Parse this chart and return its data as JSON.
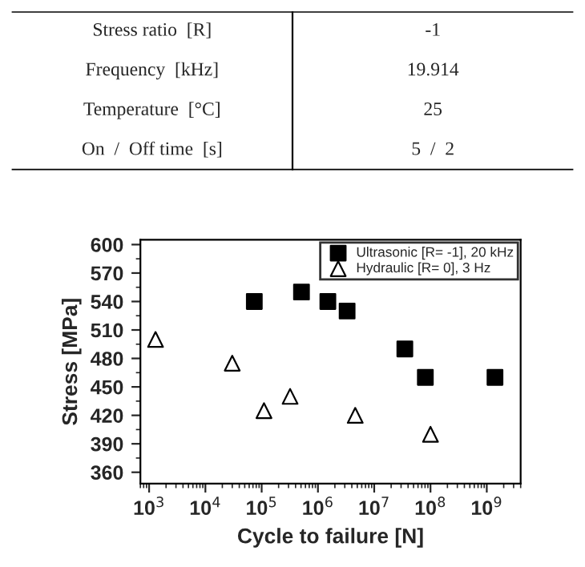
{
  "chart_data": [
    {
      "type": "other",
      "annotations": [
        "Stress ratio  [R]",
        "-1",
        "Frequency  [kHz]",
        "19.914",
        "Temperature  [°C]",
        "25",
        "On  /  Off time  [s]",
        "5  /  2"
      ]
    },
    {
      "type": "scatter",
      "xlabel": "Cycle to failure [N]",
      "ylabel": "Stress [MPa]",
      "log": "x",
      "legend": "top right",
      "grid": false,
      "xlim": [
        700,
        4000000000
      ],
      "ylim": [
        348,
        605
      ],
      "xticks": [
        {
          "value": 1000,
          "label": "10$^{3}$"
        },
        {
          "value": 10000,
          "label": "10$^{4}$"
        },
        {
          "value": 100000,
          "label": "10$^{5}$"
        },
        {
          "value": 1000000,
          "label": "10$^{6}$"
        },
        {
          "value": 10000000,
          "label": "10$^{7}$"
        },
        {
          "value": 100000000,
          "label": "10$^{8}$"
        },
        {
          "value": 1000000000,
          "label": "10$^{9}$"
        }
      ],
      "yticks": [
        360,
        390,
        420,
        450,
        480,
        510,
        540,
        570,
        600
      ],
      "series": [
        {
          "name": "Ultrasonic [R= -1], 20 kHz",
          "color": "#000000",
          "marker": "square",
          "x": [
            74000,
            510000,
            1500000,
            3300000,
            35000000,
            81000000,
            1400000000
          ],
          "values": [
            540,
            550,
            540,
            530,
            490,
            460,
            460
          ]
        },
        {
          "name": "Hydraulic [R= 0], 3 Hz",
          "color": "#ffffff",
          "marker": "triangle",
          "x": [
            1300,
            30000,
            110000,
            320000,
            4600000,
            100000000
          ],
          "values": [
            500,
            475,
            425,
            440,
            420,
            400
          ]
        }
      ]
    }
  ]
}
